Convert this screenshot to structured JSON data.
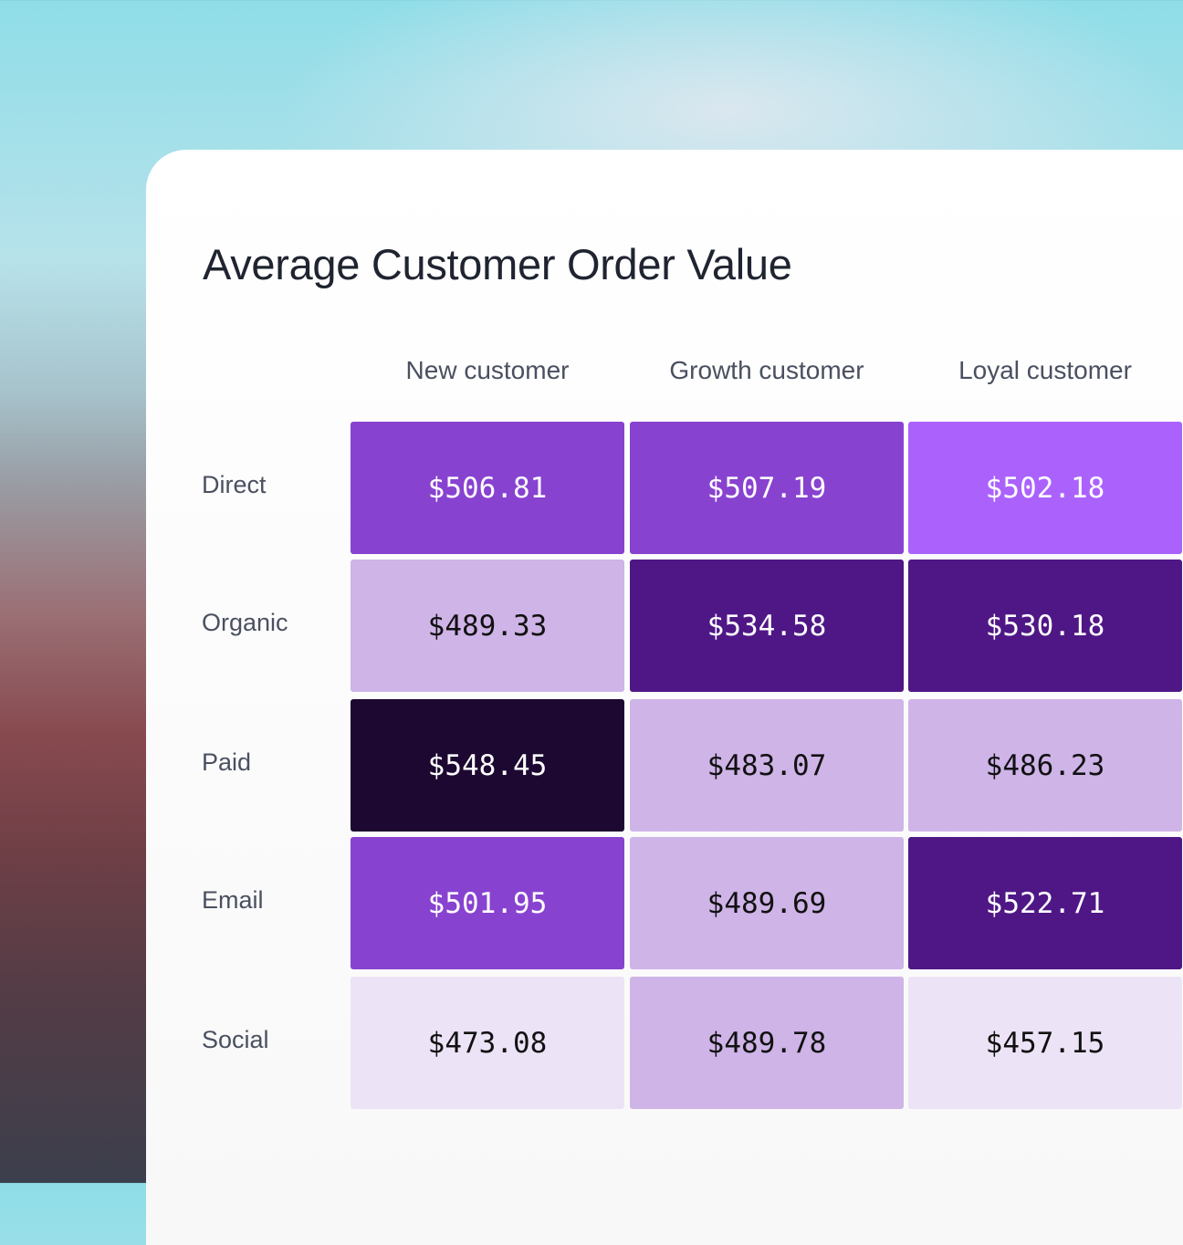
{
  "chart_data": {
    "type": "heatmap",
    "title": "Average Customer Order Value",
    "columns": [
      "New customer",
      "Growth customer",
      "Loyal customer"
    ],
    "rows": [
      "Direct",
      "Organic",
      "Paid",
      "Email",
      "Social"
    ],
    "values": [
      [
        "$506.81",
        "$507.19",
        "$502.18"
      ],
      [
        "$489.33",
        "$534.58",
        "$530.18"
      ],
      [
        "$548.45",
        "$483.07",
        "$486.23"
      ],
      [
        "$501.95",
        "$489.69",
        "$522.71"
      ],
      [
        "$473.08",
        "$489.78",
        "$457.15"
      ]
    ],
    "cell_colors": [
      [
        "#8842d0",
        "#8842d0",
        "#ab62fc"
      ],
      [
        "#cfb4e8",
        "#4f1786",
        "#4f1786"
      ],
      [
        "#1c0830",
        "#cfb4e8",
        "#cfb4e8"
      ],
      [
        "#8842d0",
        "#cfb4e8",
        "#4f1786"
      ],
      [
        "#ede3f6",
        "#cfb4e8",
        "#ede3f6"
      ]
    ],
    "text_colors": [
      [
        "#ffffff",
        "#ffffff",
        "#ffffff"
      ],
      [
        "#111111",
        "#ffffff",
        "#ffffff"
      ],
      [
        "#ffffff",
        "#111111",
        "#111111"
      ],
      [
        "#ffffff",
        "#111111",
        "#ffffff"
      ],
      [
        "#111111",
        "#111111",
        "#111111"
      ]
    ]
  }
}
